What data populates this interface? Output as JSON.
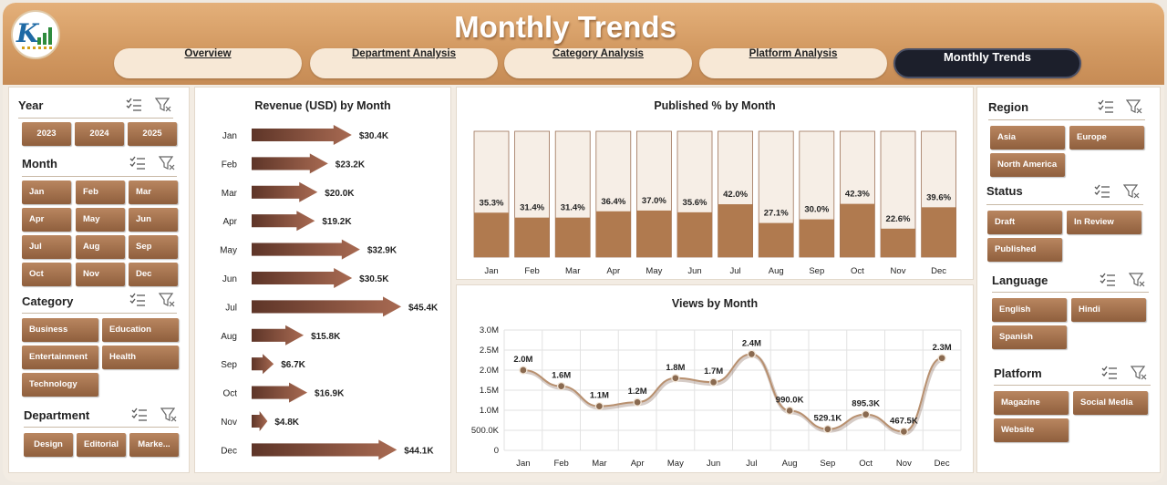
{
  "header": {
    "title": "Monthly Trends"
  },
  "nav": {
    "tabs": [
      {
        "label": "Overview",
        "active": false
      },
      {
        "label": "Department Analysis",
        "active": false
      },
      {
        "label": "Category Analysis",
        "active": false
      },
      {
        "label": "Platform Analysis",
        "active": false
      },
      {
        "label": "Monthly Trends",
        "active": true
      }
    ]
  },
  "filters_left": {
    "year": {
      "title": "Year",
      "items": [
        "2023",
        "2024",
        "2025"
      ]
    },
    "month": {
      "title": "Month",
      "items": [
        "Jan",
        "Feb",
        "Mar",
        "Apr",
        "May",
        "Jun",
        "Jul",
        "Aug",
        "Sep",
        "Oct",
        "Nov",
        "Dec"
      ]
    },
    "category": {
      "title": "Category",
      "items": [
        "Business",
        "Education",
        "Entertainment",
        "Health",
        "Technology"
      ]
    },
    "department": {
      "title": "Department",
      "items": [
        "Design",
        "Editorial",
        "Marke..."
      ]
    }
  },
  "filters_right": {
    "region": {
      "title": "Region",
      "items": [
        "Asia",
        "Europe",
        "North America"
      ]
    },
    "status": {
      "title": "Status",
      "items": [
        "Draft",
        "In Review",
        "Published"
      ]
    },
    "language": {
      "title": "Language",
      "items": [
        "English",
        "Hindi",
        "Spanish"
      ]
    },
    "platform": {
      "title": "Platform",
      "items": [
        "Magazine",
        "Social Media",
        "Website"
      ]
    }
  },
  "colors": {
    "accent_brown": "#8f5f3d",
    "bar_fill": "#b07a4f",
    "bar_bg": "#f6eee6",
    "header": "#d39a62",
    "active_tab": "#1c1f2b"
  },
  "icons": {
    "multi_select": "multi-select-icon",
    "clear_filter": "clear-filter-icon"
  },
  "chart_data": [
    {
      "type": "bar",
      "title": "Revenue (USD) by Month",
      "orientation": "horizontal",
      "categories": [
        "Jan",
        "Feb",
        "Mar",
        "Apr",
        "May",
        "Jun",
        "Jul",
        "Aug",
        "Sep",
        "Oct",
        "Nov",
        "Dec"
      ],
      "values": [
        30.4,
        23.2,
        20.0,
        19.2,
        32.9,
        30.5,
        45.4,
        15.8,
        6.7,
        16.9,
        4.8,
        44.1
      ],
      "labels": [
        "$30.4K",
        "$23.2K",
        "$20.0K",
        "$19.2K",
        "$32.9K",
        "$30.5K",
        "$45.4K",
        "$15.8K",
        "$6.7K",
        "$16.9K",
        "$4.8K",
        "$44.1K"
      ]
    },
    {
      "type": "bar",
      "title": "Published % by Month",
      "categories": [
        "Jan",
        "Feb",
        "Mar",
        "Apr",
        "May",
        "Jun",
        "Jul",
        "Aug",
        "Sep",
        "Oct",
        "Nov",
        "Dec"
      ],
      "values": [
        35.3,
        31.4,
        31.4,
        36.4,
        37.0,
        35.6,
        42.0,
        27.1,
        30.0,
        42.3,
        22.6,
        39.6
      ],
      "labels": [
        "35.3%",
        "31.4%",
        "31.4%",
        "36.4%",
        "37.0%",
        "35.6%",
        "42.0%",
        "27.1%",
        "30.0%",
        "42.3%",
        "22.6%",
        "39.6%"
      ],
      "ylim": [
        0,
        100
      ]
    },
    {
      "type": "line",
      "title": "Views by Month",
      "categories": [
        "Jan",
        "Feb",
        "Mar",
        "Apr",
        "May",
        "Jun",
        "Jul",
        "Aug",
        "Sep",
        "Oct",
        "Nov",
        "Dec"
      ],
      "values": [
        2000000,
        1600000,
        1100000,
        1200000,
        1800000,
        1700000,
        2400000,
        990000,
        529100,
        895300,
        467500,
        2300000
      ],
      "labels": [
        "2.0M",
        "1.6M",
        "1.1M",
        "1.2M",
        "1.8M",
        "1.7M",
        "2.4M",
        "990.0K",
        "529.1K",
        "895.3K",
        "467.5K",
        "2.3M"
      ],
      "yticks": [
        "0",
        "500.0K",
        "1.0M",
        "1.5M",
        "2.0M",
        "2.5M",
        "3.0M"
      ],
      "ylim": [
        0,
        3000000
      ],
      "grid": true
    }
  ]
}
